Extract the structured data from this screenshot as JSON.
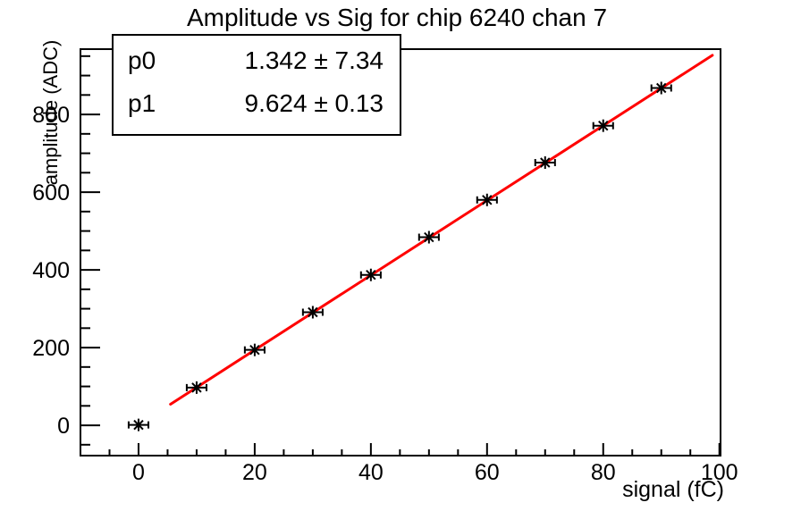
{
  "title": "Amplitude vs Sig for chip 6240 chan 7",
  "stats_box": {
    "rows": [
      {
        "name": "p0",
        "value": "1.342 ± 7.34"
      },
      {
        "name": "p1",
        "value": "9.624 ± 0.13"
      }
    ]
  },
  "axes": {
    "x_title": "signal (fC)",
    "y_title": "amplitude (ADC)"
  },
  "chart_data": {
    "type": "scatter",
    "title": "Amplitude vs Sig for chip 6240 chan 7",
    "xlabel": "signal (fC)",
    "ylabel": "amplitude (ADC)",
    "x": [
      0,
      10,
      20,
      30,
      40,
      50,
      60,
      70,
      80,
      90
    ],
    "y": [
      1,
      97,
      194,
      291,
      387,
      484,
      580,
      676,
      771,
      868
    ],
    "x_error": 1.7,
    "fit": {
      "type": "linear",
      "p0": 1.342,
      "p0_err": 7.34,
      "p1": 9.624,
      "p1_err": 0.13,
      "draw_range": [
        5.5,
        98.8
      ],
      "color": "#ff0000",
      "line_width": 3
    },
    "xlim": [
      -10,
      100.2
    ],
    "ylim": [
      -78,
      968
    ],
    "x_major_ticks": [
      0,
      20,
      40,
      60,
      80,
      100
    ],
    "y_major_ticks": [
      0,
      200,
      400,
      600,
      800
    ],
    "x_minor_step": 5,
    "y_minor_step": 50,
    "marker": "asterisk",
    "marker_color": "#000000",
    "frame_color": "#000000",
    "grid": false,
    "legend_position": "none"
  }
}
